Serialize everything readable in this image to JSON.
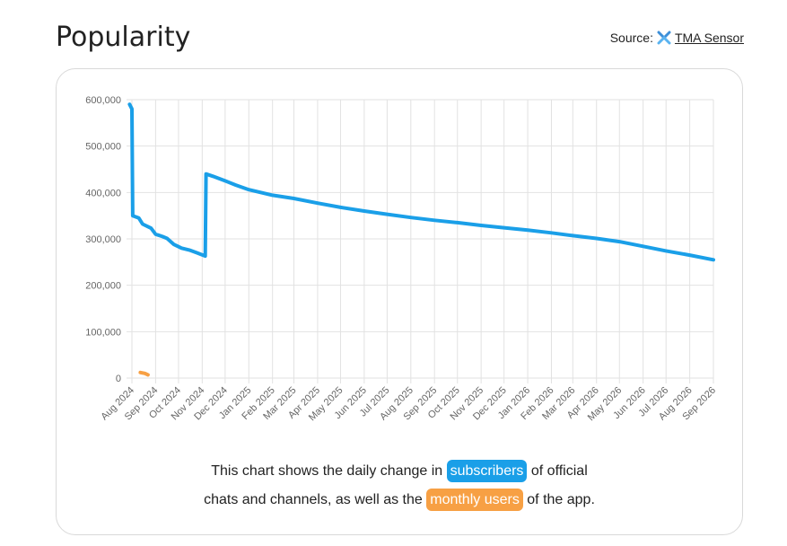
{
  "header": {
    "title": "Popularity",
    "source_prefix": "Source:",
    "source_link": "TMA Sensor",
    "source_icon": "tma-sensor-logo-icon"
  },
  "caption": {
    "line1_pre": "This chart shows the daily change in",
    "subscribers_label": "subscribers",
    "line1_post": "of official",
    "line2_pre": "chats and channels, as well as the",
    "monthly_users_label": "monthly users",
    "line2_post": "of the app."
  },
  "colors": {
    "subscribers": "#1a9fe8",
    "monthly_users": "#f7a044",
    "grid": "#e2e2e2"
  },
  "chart_data": {
    "type": "line",
    "title": "",
    "xlabel": "",
    "ylabel": "",
    "ylim": [
      0,
      600000
    ],
    "y_ticks": [
      0,
      100000,
      200000,
      300000,
      400000,
      500000,
      600000
    ],
    "y_tick_labels": [
      "0",
      "100,000",
      "200,000",
      "300,000",
      "400,000",
      "500,000",
      "600,000"
    ],
    "x_ticks": [
      "Aug 2024",
      "Sep 2024",
      "Oct 2024",
      "Nov 2024",
      "Dec 2024",
      "Jan 2025",
      "Feb 2025",
      "Mar 2025",
      "Apr 2025",
      "May 2025",
      "Jun 2025",
      "Jul 2025",
      "Aug 2025",
      "Sep 2025",
      "Oct 2025",
      "Nov 2025",
      "Dec 2025",
      "Jan 2026",
      "Feb 2026",
      "Mar 2026",
      "Apr 2026",
      "May 2026",
      "Jun 2026",
      "Jul 2026",
      "Aug 2026",
      "Sep 2026"
    ],
    "grid": true,
    "legend": "none",
    "series": [
      {
        "name": "subscribers",
        "points": [
          [
            "2024-07-29",
            590000
          ],
          [
            "2024-08-01",
            580000
          ],
          [
            "2024-08-02",
            350000
          ],
          [
            "2024-08-10",
            345000
          ],
          [
            "2024-08-15",
            332000
          ],
          [
            "2024-08-26",
            323000
          ],
          [
            "2024-09-01",
            310000
          ],
          [
            "2024-09-10",
            305000
          ],
          [
            "2024-09-16",
            301000
          ],
          [
            "2024-09-25",
            288000
          ],
          [
            "2024-10-05",
            280000
          ],
          [
            "2024-10-15",
            276000
          ],
          [
            "2024-10-25",
            270000
          ],
          [
            "2024-11-05",
            263000
          ],
          [
            "2024-11-06",
            440000
          ],
          [
            "2024-11-15",
            435000
          ],
          [
            "2024-12-01",
            425000
          ],
          [
            "2024-12-15",
            416000
          ],
          [
            "2025-01-01",
            406000
          ],
          [
            "2025-02-01",
            394000
          ],
          [
            "2025-03-01",
            387000
          ],
          [
            "2025-04-01",
            377000
          ],
          [
            "2025-05-01",
            368000
          ],
          [
            "2025-06-01",
            360000
          ],
          [
            "2025-07-01",
            353000
          ],
          [
            "2025-08-01",
            346000
          ],
          [
            "2025-09-01",
            340000
          ],
          [
            "2025-10-01",
            335000
          ],
          [
            "2025-11-01",
            329000
          ],
          [
            "2025-12-01",
            324000
          ],
          [
            "2026-01-01",
            319000
          ],
          [
            "2026-02-01",
            313000
          ],
          [
            "2026-03-01",
            307000
          ],
          [
            "2026-04-01",
            301000
          ],
          [
            "2026-05-01",
            294000
          ],
          [
            "2026-06-01",
            284000
          ],
          [
            "2026-07-01",
            274000
          ],
          [
            "2026-08-01",
            265000
          ],
          [
            "2026-09-01",
            255000
          ]
        ]
      },
      {
        "name": "monthly users",
        "points": [
          [
            "2024-08-12",
            12000
          ],
          [
            "2024-08-18",
            10000
          ],
          [
            "2024-08-22",
            7000
          ]
        ]
      }
    ]
  }
}
